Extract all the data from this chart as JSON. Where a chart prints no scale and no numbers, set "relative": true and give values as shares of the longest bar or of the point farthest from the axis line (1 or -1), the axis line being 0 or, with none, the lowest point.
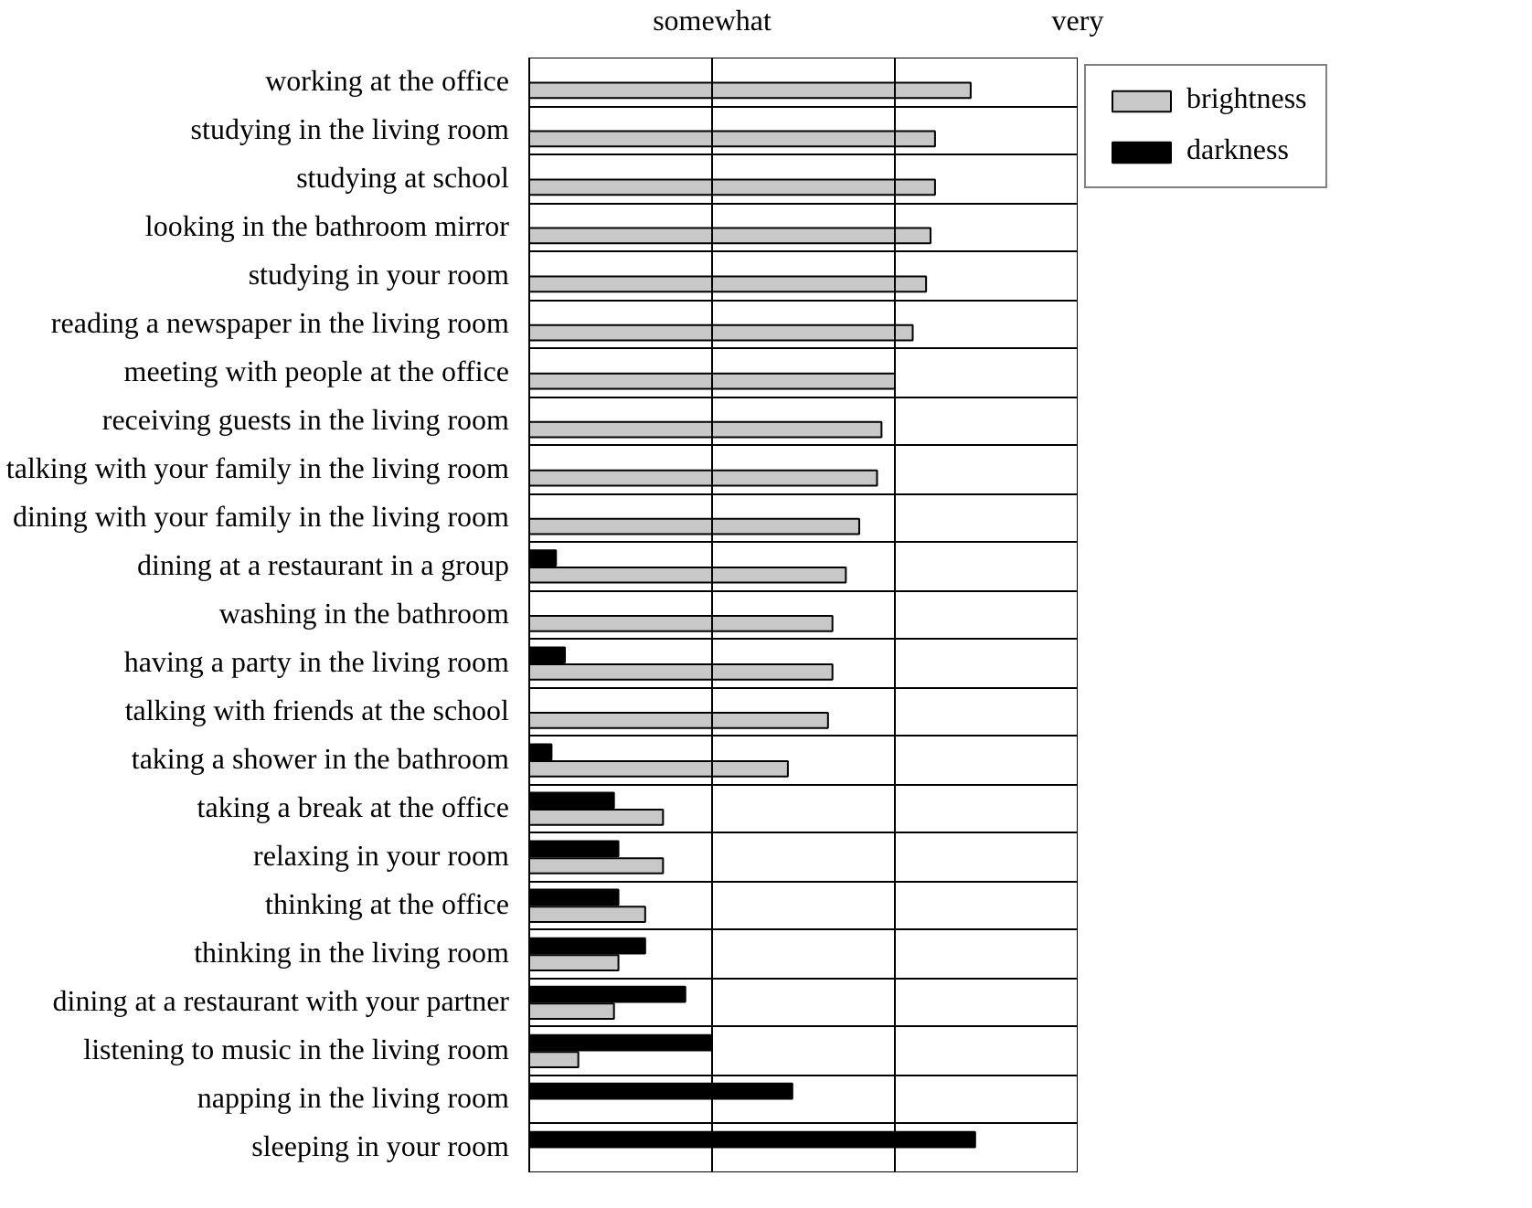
{
  "chart_data": {
    "type": "bar",
    "orientation": "horizontal",
    "relative": true,
    "categories": [
      "working at the office",
      "studying in the living room",
      "studying at school",
      "looking in the bathroom mirror",
      "studying in your room",
      "reading a newspaper in the living room",
      "meeting with people at the office",
      "receiving guests in the living room",
      "talking with your family in the living room",
      "dining with your family in the living room",
      "dining at a restaurant in a group",
      "washing in the bathroom",
      "having a party in the living room",
      "talking with friends at the school",
      "taking a shower in the bathroom",
      "taking a break at the office",
      "relaxing in your room",
      "thinking at the office",
      "thinking in the living room",
      "dining at a restaurant with your partner",
      "listening to music in the living room",
      "napping in the living room",
      "sleeping in your room"
    ],
    "series": [
      {
        "name": "brightness",
        "color": "#c8c8c8",
        "values": [
          0.99,
          0.91,
          0.91,
          0.9,
          0.89,
          0.86,
          0.82,
          0.79,
          0.78,
          0.74,
          0.71,
          0.68,
          0.68,
          0.67,
          0.58,
          0.3,
          0.3,
          0.26,
          0.2,
          0.19,
          0.11,
          null,
          null
        ]
      },
      {
        "name": "darkness",
        "color": "#000000",
        "values": [
          null,
          null,
          null,
          null,
          null,
          null,
          null,
          null,
          null,
          null,
          0.06,
          null,
          0.08,
          null,
          0.05,
          0.19,
          0.2,
          0.2,
          0.26,
          0.35,
          0.41,
          0.59,
          1.0
        ]
      }
    ],
    "ref_lines": [
      {
        "axis": "x",
        "value": 0.41,
        "label": "somewhat",
        "color": "#000000"
      },
      {
        "axis": "x",
        "value": 0.82,
        "label": null,
        "color": "#000000"
      },
      {
        "axis": "x",
        "value": 1.23,
        "label": "very",
        "color": "#000000"
      }
    ],
    "grid": "y",
    "legend": "top right"
  }
}
